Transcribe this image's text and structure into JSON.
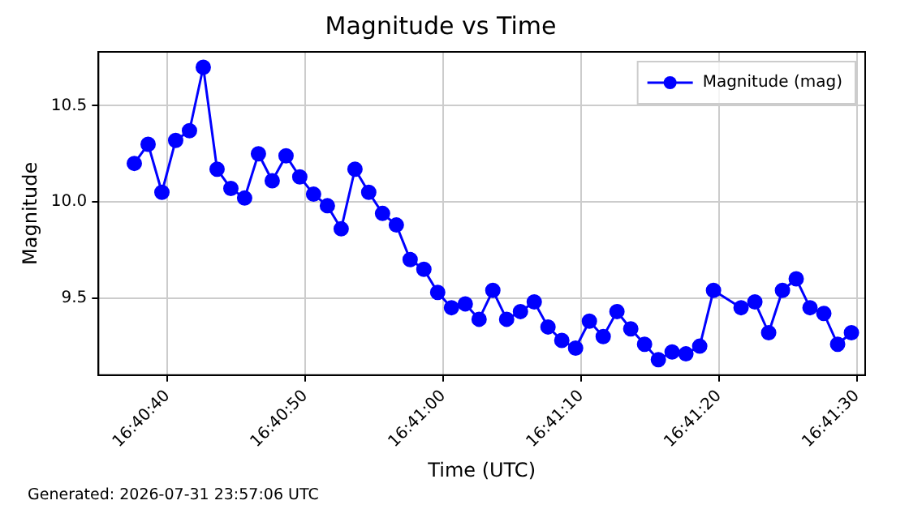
{
  "chart_data": {
    "type": "line",
    "title": "Magnitude vs Time",
    "xlabel": "Time (UTC)",
    "ylabel": "Magnitude",
    "annotations": [
      "Generated: 2026-07-31 23:57:06 UTC"
    ],
    "x": [
      16.677111,
      16.677389,
      16.677667,
      16.677944,
      16.678222,
      16.6785,
      16.678778,
      16.679056,
      16.679333,
      16.679611,
      16.679889,
      16.680167,
      16.680444,
      16.680722,
      16.681,
      16.681278,
      16.681556,
      16.681833,
      16.682111,
      16.682389,
      16.682667,
      16.682944,
      16.683222,
      16.6835,
      16.683778,
      16.684056,
      16.684333,
      16.684611,
      16.684889,
      16.685167,
      16.685444,
      16.685722,
      16.686,
      16.686278,
      16.686556,
      16.686833,
      16.687111,
      16.687389,
      16.687667,
      16.687944,
      16.688222,
      16.6885,
      16.688778,
      16.689333,
      16.689611,
      16.689889,
      16.690167,
      16.690444,
      16.690722,
      16.691,
      16.691278,
      16.691556
    ],
    "series": [
      {
        "name": "Magnitude (mag)",
        "color": "#0000ff",
        "values": [
          10.2,
          10.3,
          10.05,
          10.32,
          10.37,
          10.7,
          10.17,
          10.07,
          10.02,
          10.25,
          10.11,
          10.24,
          10.13,
          10.04,
          9.98,
          9.86,
          10.17,
          10.05,
          9.94,
          9.88,
          9.7,
          9.65,
          9.53,
          9.45,
          9.47,
          9.39,
          9.54,
          9.39,
          9.43,
          9.48,
          9.35,
          9.28,
          9.24,
          9.38,
          9.3,
          9.43,
          9.34,
          9.26,
          9.18,
          9.22,
          9.21,
          9.25,
          9.54,
          9.45,
          9.48,
          9.32,
          9.54,
          9.6,
          9.45,
          9.42,
          9.26,
          9.32
        ]
      }
    ],
    "xlim": [
      16.676389,
      16.691833
    ],
    "xticks": [
      {
        "value": 16.677778,
        "label": "16:40:40"
      },
      {
        "value": 16.680556,
        "label": "16:40:50"
      },
      {
        "value": 16.683333,
        "label": "16:41:00"
      },
      {
        "value": 16.686111,
        "label": "16:41:10"
      },
      {
        "value": 16.688889,
        "label": "16:41:20"
      },
      {
        "value": 16.691667,
        "label": "16:41:30"
      }
    ],
    "ylim": [
      9.1,
      10.78
    ],
    "yticks": [
      {
        "value": 9.5,
        "label": "9.5"
      },
      {
        "value": 10.0,
        "label": "10.0"
      },
      {
        "value": 10.5,
        "label": "10.5"
      }
    ],
    "grid": true,
    "legend": "top right",
    "marker": "circle",
    "line_style": "solid"
  }
}
